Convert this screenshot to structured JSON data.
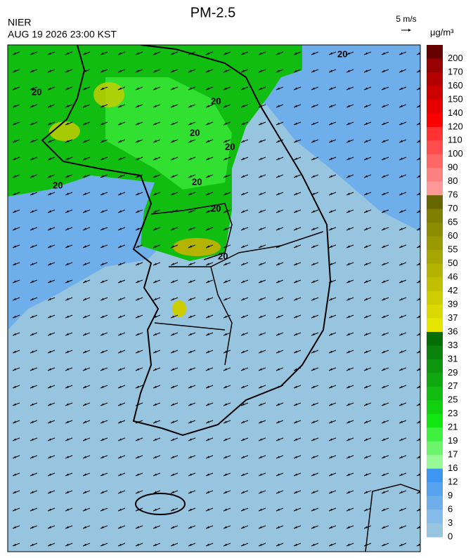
{
  "header": {
    "title": "PM-2.5",
    "agency": "NIER",
    "timestamp": "AUG 19 2026 23:00 KST",
    "wind_scale": "5 m/s"
  },
  "map": {
    "contour_labels": [
      "20",
      "20",
      "20",
      "20",
      "20",
      "20",
      "20",
      "20",
      "20"
    ]
  },
  "colorbar": {
    "unit": "μg/m³",
    "levels": [
      200,
      170,
      160,
      150,
      140,
      120,
      110,
      100,
      90,
      80,
      76,
      70,
      65,
      60,
      55,
      50,
      46,
      42,
      39,
      37,
      36,
      33,
      31,
      29,
      27,
      25,
      23,
      21,
      19,
      17,
      16,
      12,
      9,
      6,
      3,
      0
    ],
    "colors": [
      "#660000",
      "#990000",
      "#b30000",
      "#cc0000",
      "#e60000",
      "#ff0000",
      "#ff3333",
      "#ff4d4d",
      "#ff6666",
      "#ff8080",
      "#ff9999",
      "#666600",
      "#7f7f00",
      "#8c8c00",
      "#999900",
      "#a6a600",
      "#b3b300",
      "#c0c000",
      "#cdcd00",
      "#dada00",
      "#e6e600",
      "#066e06",
      "#0b820b",
      "#0f960f",
      "#10a810",
      "#11bd11",
      "#10d010",
      "#11e611",
      "#3ff03f",
      "#6cf56c",
      "#97fa97",
      "#3c96f2",
      "#57a3ef",
      "#6eafeb",
      "#84bbe8",
      "#97c5e0"
    ]
  }
}
